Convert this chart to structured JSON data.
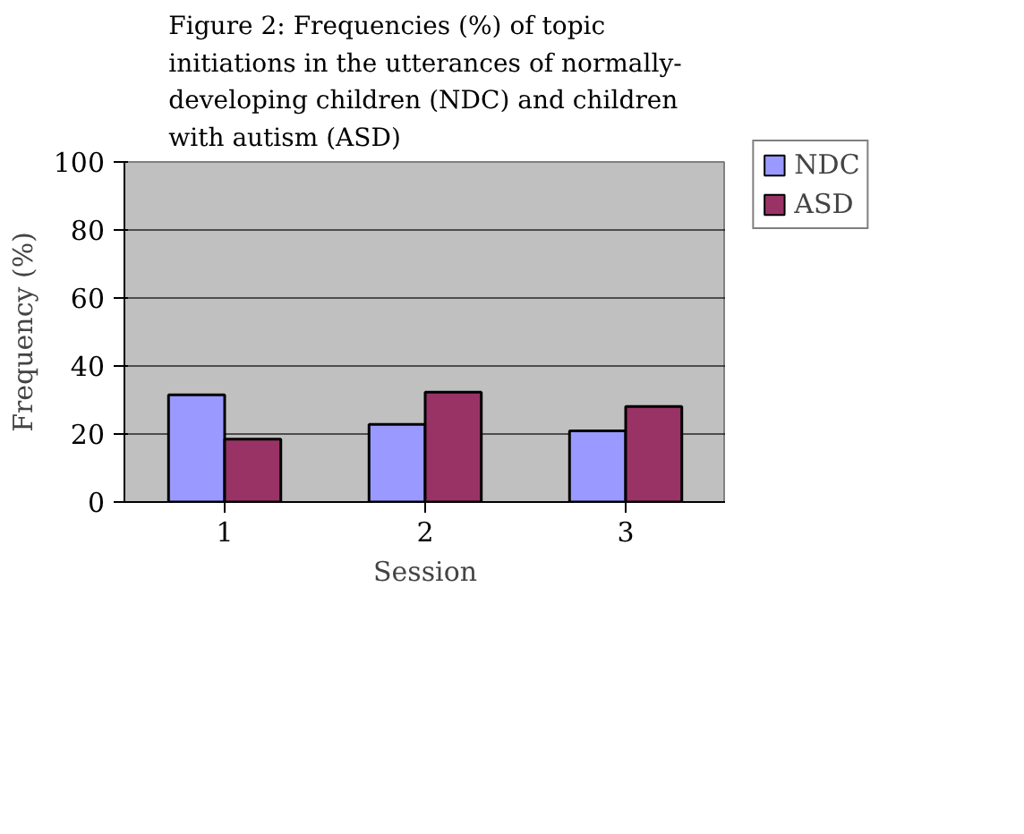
{
  "chart_data": {
    "type": "bar",
    "title": "Figure 2: Frequencies (%) of topic initiations in the utterances of normally-developing children (NDC) and children with autism (ASD)",
    "xlabel": "Session",
    "ylabel": "Frequency (%)",
    "categories": [
      "1",
      "2",
      "3"
    ],
    "series": [
      {
        "name": "NDC",
        "color": "#9999ff",
        "values": [
          31.5,
          22.8,
          20.9
        ]
      },
      {
        "name": "ASD",
        "color": "#993366",
        "values": [
          18.5,
          32.3,
          28.1
        ]
      }
    ],
    "ylim": [
      0,
      100
    ],
    "yticks": [
      0,
      20,
      40,
      60,
      80,
      100
    ],
    "grid": "y",
    "legend": "right"
  }
}
